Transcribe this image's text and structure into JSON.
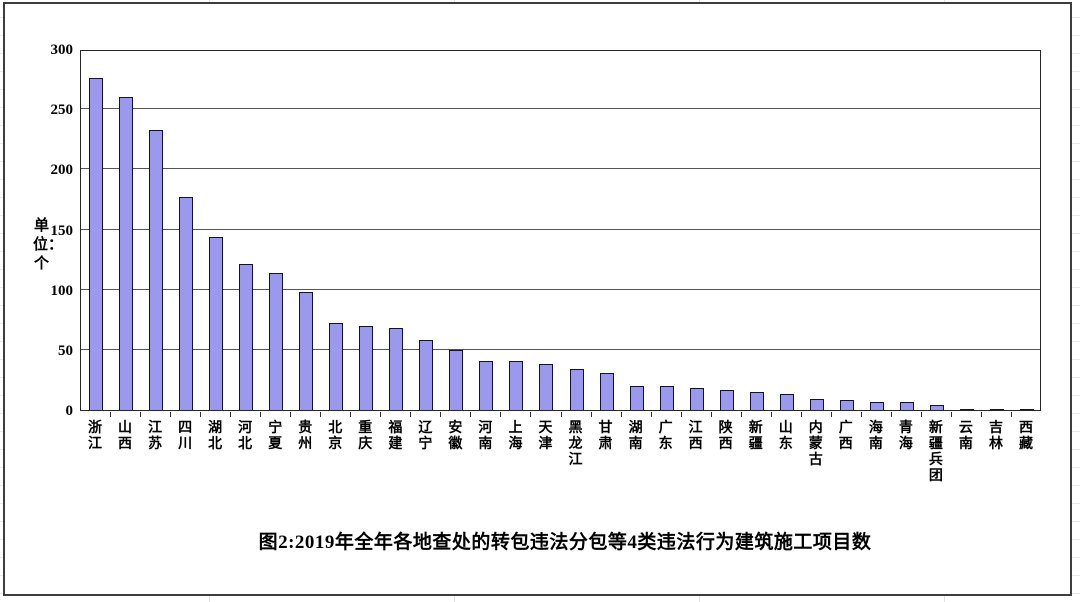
{
  "chart_data": {
    "type": "bar",
    "title": "图2:2019年全年各地查处的转包违法分包等4类违法行为建筑施工项目数",
    "ylabel": "单位：个",
    "xlabel": "",
    "ylim": [
      0,
      300
    ],
    "yticks": [
      0,
      50,
      100,
      150,
      200,
      250,
      300
    ],
    "grid": true,
    "legend": false,
    "bar_fill_color": "#9a99ee",
    "bar_border_color": "#10103a",
    "categories": [
      "浙江",
      "山西",
      "江苏",
      "四川",
      "湖北",
      "河北",
      "宁夏",
      "贵州",
      "北京",
      "重庆",
      "福建",
      "辽宁",
      "安徽",
      "河南",
      "上海",
      "天津",
      "黑龙江",
      "甘肃",
      "湖南",
      "广东",
      "江西",
      "陕西",
      "新疆",
      "山东",
      "内蒙古",
      "广西",
      "海南",
      "青海",
      "新疆兵团",
      "云南",
      "吉林",
      "西藏"
    ],
    "values": [
      276,
      260,
      233,
      177,
      144,
      121,
      114,
      98,
      72,
      70,
      68,
      58,
      50,
      41,
      41,
      38,
      34,
      31,
      20,
      20,
      18,
      17,
      15,
      13,
      9,
      8,
      7,
      7,
      4,
      1,
      1,
      1
    ]
  }
}
